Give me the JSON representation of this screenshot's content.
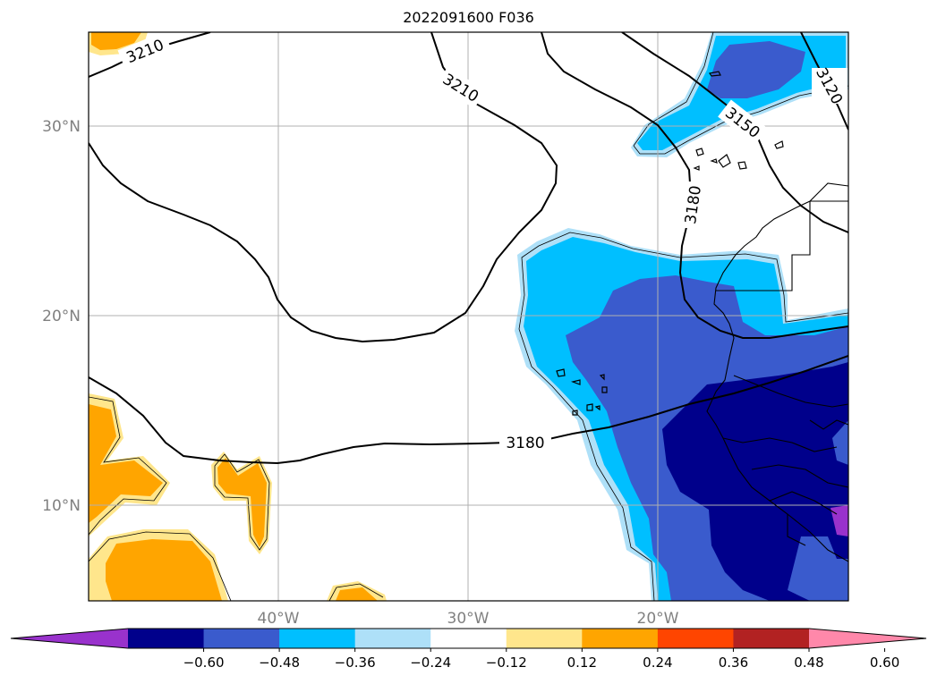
{
  "title": "2022091600 F036",
  "axes": {
    "lat_labels": [
      "30°N",
      "20°N",
      "10°N"
    ],
    "lon_labels": [
      "40°W",
      "30°W",
      "20°W"
    ],
    "label_color": "#808080",
    "grid_color": "#b0b0b0"
  },
  "contours": {
    "color": "#000000",
    "labels": [
      "3210",
      "3210",
      "3120",
      "3150",
      "3180",
      "3180"
    ]
  },
  "colorbar": {
    "ticks": [
      "−0.60",
      "−0.48",
      "−0.36",
      "−0.24",
      "−0.12",
      "0.12",
      "0.24",
      "0.36",
      "0.48",
      "0.60"
    ],
    "colors": [
      "#9932cc",
      "#00008b",
      "#3a5bcd",
      "#00bfff",
      "#aee0f8",
      "#ffffff",
      "#ffe68c",
      "#ffa500",
      "#ff4500",
      "#b22222",
      "#ff88aa"
    ]
  },
  "fill_colors": {
    "orange": "#ffa500",
    "yellow": "#ffe68c",
    "light_blue": "#aee0f8",
    "sky_blue": "#00bfff",
    "mid_blue": "#3a5bcd",
    "navy": "#00008b",
    "purple": "#9932cc"
  }
}
